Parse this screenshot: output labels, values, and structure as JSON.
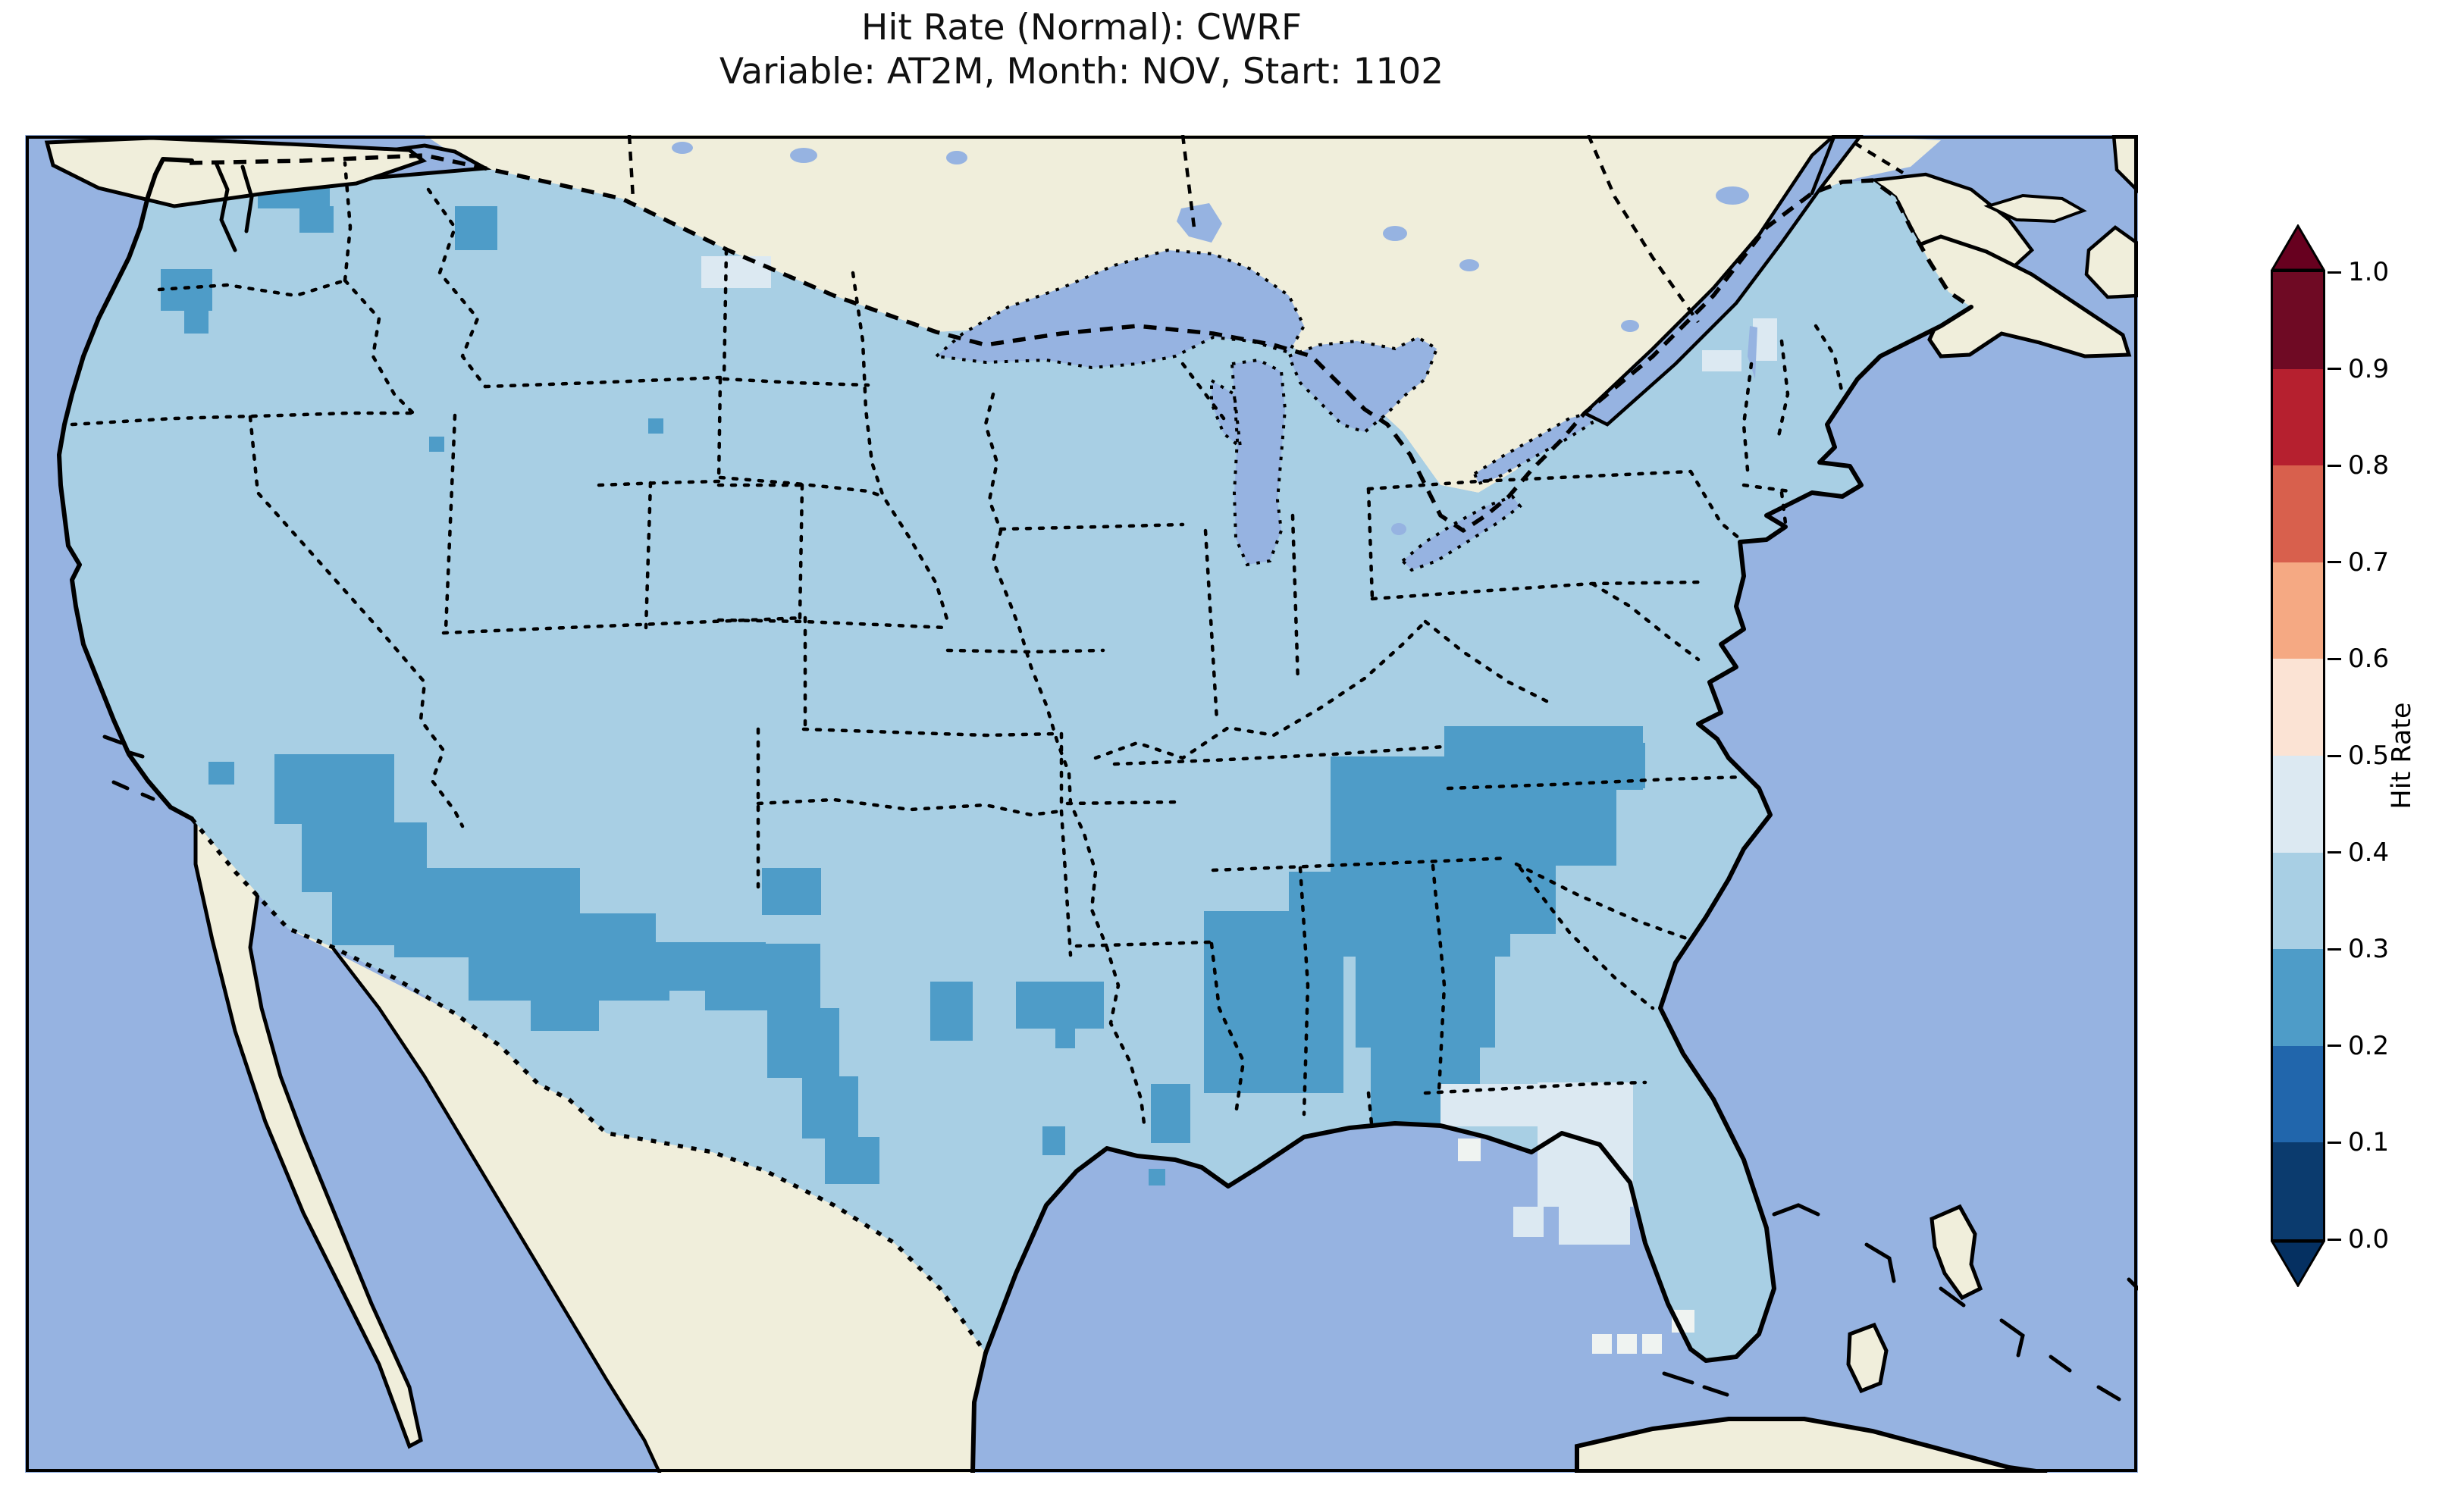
{
  "figure": {
    "title_line1": "Hit Rate (Normal): CWRF",
    "title_line2": "Variable: AT2M, Month: NOV, Start: 1102"
  },
  "colorbar": {
    "label": "Hit Rate",
    "orientation": "vertical",
    "extend": "both",
    "over_color": "#67001f",
    "under_color": "#053061",
    "ticks": [
      {
        "label": "1.0"
      },
      {
        "label": "0.9"
      },
      {
        "label": "0.8"
      },
      {
        "label": "0.7"
      },
      {
        "label": "0.6"
      },
      {
        "label": "0.5"
      },
      {
        "label": "0.4"
      },
      {
        "label": "0.3"
      },
      {
        "label": "0.2"
      },
      {
        "label": "0.1"
      },
      {
        "label": "0.0"
      }
    ],
    "segments": [
      {
        "range": "0.9-1.0",
        "color": "#6f0a24"
      },
      {
        "range": "0.8-0.9",
        "color": "#b6202f"
      },
      {
        "range": "0.7-0.8",
        "color": "#d8604d"
      },
      {
        "range": "0.6-0.7",
        "color": "#f5a983"
      },
      {
        "range": "0.5-0.6",
        "color": "#fbe3d4"
      },
      {
        "range": "0.4-0.5",
        "color": "#dce9f2"
      },
      {
        "range": "0.3-0.4",
        "color": "#a8cfe4"
      },
      {
        "range": "0.2-0.3",
        "color": "#4e9cc8"
      },
      {
        "range": "0.1-0.2",
        "color": "#2166ac"
      },
      {
        "range": "0.0-0.1",
        "color": "#0b3b6e"
      }
    ]
  },
  "map_colors": {
    "ocean": "#96b3e1",
    "land": "#f0eedb",
    "conus_fill": "#a8cfe4",
    "dark_cell": "#4e9cc8",
    "pale_cell": "#dce9f2",
    "white_cell": "#eff3f1"
  },
  "map": {
    "patches": [
      {
        "bin": "0.2-0.3",
        "color_key": "dark_cell",
        "cells": [
          [
            238,
            220,
            30,
            40
          ],
          [
            340,
            205,
            95,
            70
          ],
          [
            395,
            272,
            45,
            35
          ],
          [
            212,
            355,
            68,
            55
          ],
          [
            243,
            408,
            32,
            32
          ],
          [
            600,
            272,
            56,
            58
          ],
          [
            566,
            576,
            20,
            20
          ],
          [
            855,
            552,
            20,
            20
          ],
          [
            275,
            1005,
            34,
            30
          ],
          [
            362,
            995,
            158,
            92
          ],
          [
            398,
            1085,
            165,
            92
          ],
          [
            438,
            1175,
            205,
            72
          ],
          [
            540,
            1145,
            225,
            62
          ],
          [
            520,
            1205,
            345,
            58
          ],
          [
            618,
            1262,
            265,
            58
          ],
          [
            700,
            1320,
            90,
            40
          ],
          [
            862,
            1243,
            148,
            64
          ],
          [
            930,
            1245,
            152,
            88
          ],
          [
            1012,
            1330,
            95,
            92
          ],
          [
            1058,
            1420,
            74,
            82
          ],
          [
            1088,
            1500,
            72,
            62
          ],
          [
            1005,
            1145,
            78,
            62
          ],
          [
            1227,
            1295,
            56,
            78
          ],
          [
            1340,
            1295,
            116,
            62
          ],
          [
            1392,
            1357,
            26,
            26
          ],
          [
            1518,
            1430,
            52,
            78
          ],
          [
            1375,
            1486,
            30,
            38
          ],
          [
            1515,
            1542,
            22,
            22
          ],
          [
            1588,
            1202,
            114,
            240
          ],
          [
            1700,
            1150,
            72,
            292
          ],
          [
            1755,
            998,
            152,
            194
          ],
          [
            1905,
            958,
            262,
            84
          ],
          [
            1848,
            1042,
            284,
            100
          ],
          [
            1770,
            1142,
            222,
            120
          ],
          [
            1788,
            1262,
            184,
            120
          ],
          [
            1808,
            1382,
            144,
            100
          ],
          [
            1986,
            1138,
            66,
            94
          ],
          [
            2130,
            980,
            40,
            60
          ]
        ]
      },
      {
        "bin": "0.4-0.5",
        "color_key": "pale_cell",
        "cells": [
          [
            925,
            338,
            92,
            42
          ],
          [
            2245,
            462,
            52,
            28
          ],
          [
            2312,
            420,
            32,
            56
          ],
          [
            1900,
            1430,
            132,
            56
          ],
          [
            2028,
            1428,
            126,
            164
          ],
          [
            2056,
            1560,
            94,
            82
          ],
          [
            1996,
            1592,
            40,
            40
          ]
        ]
      },
      {
        "bin": "0.5-0.6",
        "color_key": "white_cell",
        "cells": [
          [
            1923,
            1502,
            30,
            30
          ],
          [
            2100,
            1760,
            26,
            26
          ],
          [
            2133,
            1760,
            26,
            26
          ],
          [
            2166,
            1760,
            26,
            26
          ],
          [
            2205,
            1728,
            30,
            30
          ]
        ]
      }
    ]
  },
  "chart_data": {
    "type": "heatmap",
    "title": "Hit Rate (Normal): CWRF",
    "subtitle": "Variable: AT2M, Month: NOV, Start: 1102",
    "model": "CWRF",
    "variable": "AT2M",
    "month": "NOV",
    "start": "1102",
    "colorbar": {
      "label": "Hit Rate",
      "range": [
        0.0,
        1.0
      ],
      "tick_step": 0.1,
      "colormap": "RdBu_r, discrete 0.1 bins, extend both",
      "legend_position": "right"
    },
    "projection": "Lambert conformal over CONUS with Canada/Mexico masked (land beige, ocean/lakes periwinkle)",
    "regions": [
      {
        "area": "Most of CONUS (default)",
        "hit_rate": "0.3-0.4"
      },
      {
        "area": "Tennessee Valley and southern Appalachians (TN, KY border, W NC, SW VA)",
        "hit_rate": "0.2-0.3"
      },
      {
        "area": "Alabama / Georgia down to the Florida panhandle border",
        "hit_rate": "0.2-0.3"
      },
      {
        "area": "Mississippi & SE Louisiana scattered cells",
        "hit_rate": "0.2-0.3"
      },
      {
        "area": "SE Arizona - S New Mexico - West Texas border band along Rio Grande",
        "hit_rate": "0.2-0.3"
      },
      {
        "area": "Central / north Texas scattered cells",
        "hit_rate": "0.2-0.3"
      },
      {
        "area": "Puget Sound & Washington coast cells; NW Montana cells; single cells in Idaho/Wyoming/S Nevada",
        "hit_rate": "0.2-0.3"
      },
      {
        "area": "Northern Florida / Big Bend region",
        "hit_rate": "0.4-0.5"
      },
      {
        "area": "North Dakota border cells; Adirondacks / N New England cells",
        "hit_rate": "0.4-0.5"
      },
      {
        "area": "Isolated cells near Florida Keys and panhandle coast",
        "hit_rate": "0.5-0.6"
      }
    ]
  }
}
